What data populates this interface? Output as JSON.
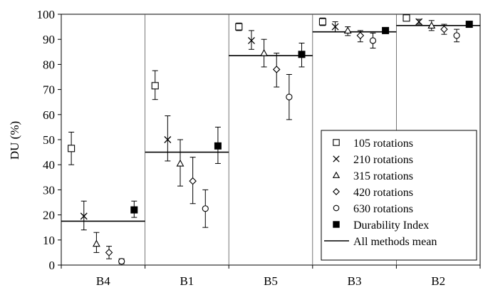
{
  "chart_data": {
    "type": "scatter",
    "title": "",
    "xlabel": "",
    "ylabel": "DU (%)",
    "ylim": [
      0,
      100
    ],
    "yticks": [
      0,
      10,
      20,
      30,
      40,
      50,
      60,
      70,
      80,
      90,
      100
    ],
    "categories": [
      "B4",
      "B1",
      "B5",
      "B3",
      "B2"
    ],
    "grid": false,
    "legend_position": "right, lower-middle",
    "series": [
      {
        "name": "105 rotations",
        "marker": "square-open",
        "values": [
          46.5,
          71.5,
          95.0,
          97.0,
          98.5
        ],
        "err_low": [
          40.0,
          66.0,
          93.5,
          95.5,
          97.5
        ],
        "err_high": [
          53.0,
          77.5,
          96.5,
          98.5,
          99.5
        ]
      },
      {
        "name": "210 rotations",
        "marker": "x",
        "values": [
          19.5,
          50.0,
          89.5,
          95.0,
          97.0
        ],
        "err_low": [
          14.0,
          41.5,
          86.0,
          93.0,
          96.0
        ],
        "err_high": [
          25.5,
          59.5,
          93.5,
          97.0,
          98.0
        ]
      },
      {
        "name": "315 rotations",
        "marker": "triangle-open",
        "values": [
          8.5,
          40.5,
          84.5,
          93.5,
          95.5
        ],
        "err_low": [
          5.0,
          31.5,
          79.0,
          91.5,
          93.5
        ],
        "err_high": [
          13.0,
          50.0,
          90.0,
          95.0,
          97.5
        ]
      },
      {
        "name": "420 rotations",
        "marker": "diamond-open",
        "values": [
          5.0,
          33.5,
          78.0,
          91.5,
          94.0
        ],
        "err_low": [
          2.5,
          24.5,
          71.0,
          89.0,
          92.0
        ],
        "err_high": [
          7.5,
          43.0,
          84.5,
          93.5,
          96.0
        ]
      },
      {
        "name": "630 rotations",
        "marker": "circle-open",
        "values": [
          1.5,
          22.5,
          67.0,
          89.5,
          91.5
        ],
        "err_low": [
          0.5,
          15.0,
          58.0,
          86.5,
          89.0
        ],
        "err_high": [
          2.5,
          30.0,
          76.0,
          92.5,
          94.0
        ]
      },
      {
        "name": "Durability Index",
        "marker": "square-filled",
        "values": [
          22.0,
          47.5,
          84.0,
          93.5,
          96.0
        ],
        "err_low": [
          19.0,
          40.5,
          79.0,
          92.5,
          95.5
        ],
        "err_high": [
          25.5,
          55.0,
          88.5,
          94.5,
          96.5
        ]
      },
      {
        "name": "All methods mean",
        "marker": "line",
        "values": [
          17.5,
          45.0,
          83.5,
          93.0,
          95.5
        ]
      }
    ]
  }
}
